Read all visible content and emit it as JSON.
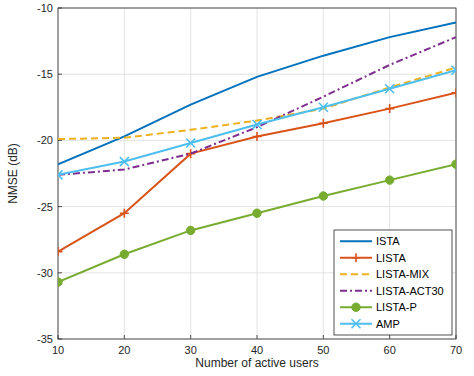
{
  "chart_data": {
    "type": "line",
    "x_label": "Number of active users",
    "y_label": "NMSE (dB)",
    "x": [
      10,
      20,
      30,
      40,
      50,
      60,
      70
    ],
    "xlim": [
      10,
      70
    ],
    "xticks": [
      10,
      20,
      30,
      40,
      50,
      60,
      70
    ],
    "ylim": [
      -35,
      -10
    ],
    "yticks": [
      -35,
      -30,
      -25,
      -20,
      -15,
      -10
    ],
    "grid": true,
    "legend": "lower right",
    "series": [
      {
        "name": "ISTA",
        "color": "#0072BD",
        "line_style": "solid",
        "marker": "none",
        "values": [
          -21.8,
          -19.7,
          -17.3,
          -15.2,
          -13.6,
          -12.2,
          -11.1
        ]
      },
      {
        "name": "LISTA",
        "color": "#D95319",
        "line_style": "solid",
        "marker": "plus",
        "values": [
          -28.4,
          -25.5,
          -21.0,
          -19.7,
          -18.7,
          -17.6,
          -16.4
        ]
      },
      {
        "name": "LISTA-MIX",
        "color": "#EDB120",
        "line_style": "dashed",
        "marker": "none",
        "values": [
          -19.9,
          -19.8,
          -19.2,
          -18.5,
          -17.6,
          -16.0,
          -14.5
        ]
      },
      {
        "name": "LISTA-ACT30",
        "color": "#7E2F8E",
        "line_style": "dashdot",
        "marker": "none",
        "values": [
          -22.6,
          -22.2,
          -21.0,
          -19.0,
          -16.7,
          -14.3,
          -12.2
        ]
      },
      {
        "name": "LISTA-P",
        "color": "#77AC30",
        "line_style": "solid",
        "marker": "circle",
        "values": [
          -30.7,
          -28.6,
          -26.8,
          -25.5,
          -24.2,
          -23.0,
          -21.8
        ]
      },
      {
        "name": "AMP",
        "color": "#4DBEEE",
        "line_style": "solid",
        "marker": "x",
        "values": [
          -22.6,
          -21.6,
          -20.2,
          -18.8,
          -17.5,
          -16.1,
          -14.7
        ]
      }
    ]
  }
}
